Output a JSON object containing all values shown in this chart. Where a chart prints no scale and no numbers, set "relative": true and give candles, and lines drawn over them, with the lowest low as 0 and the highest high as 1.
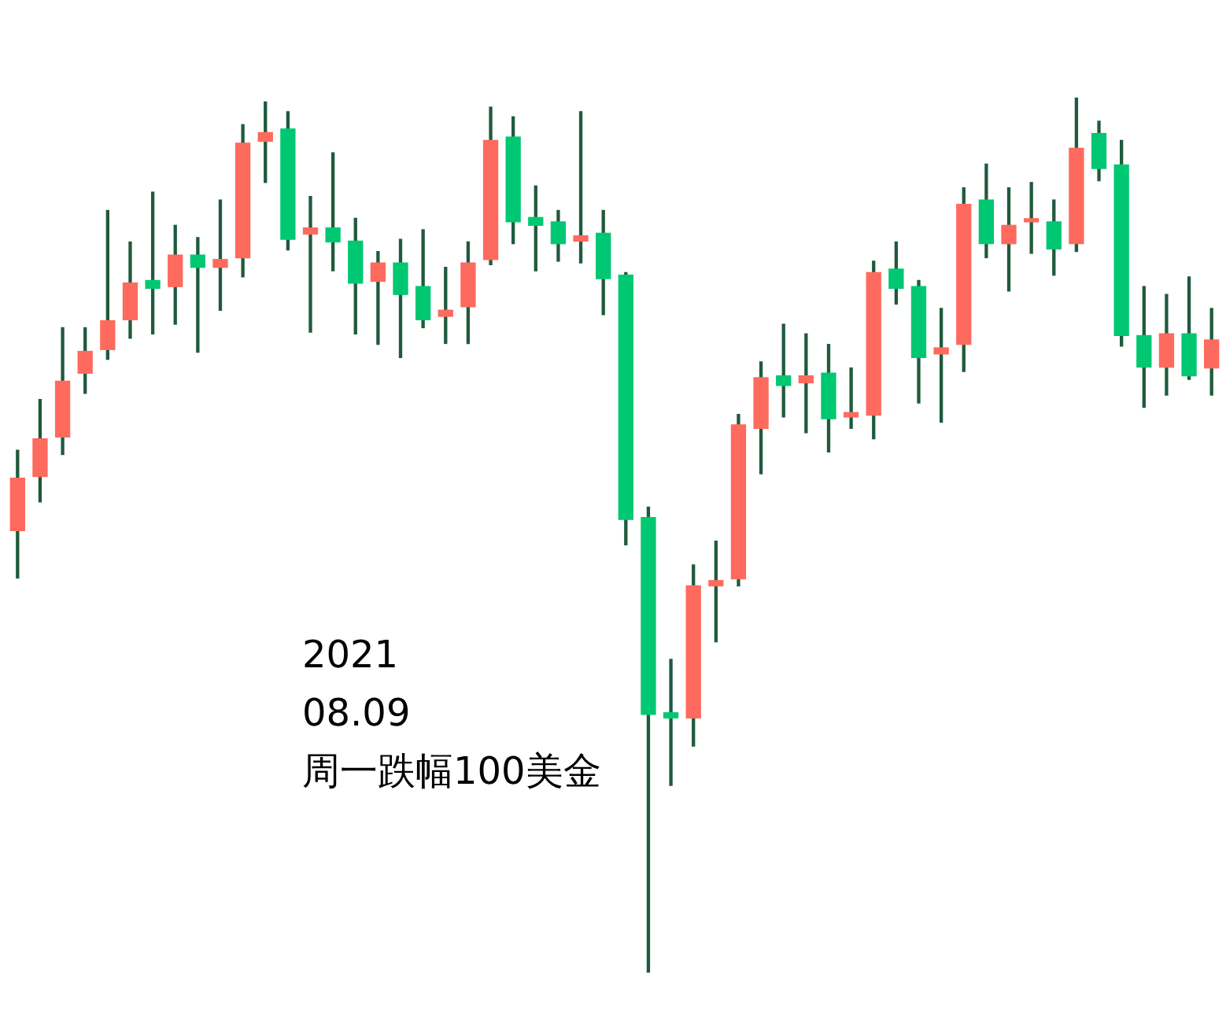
{
  "chart_data": {
    "type": "candlestick",
    "relative": true,
    "categories": [
      null,
      null,
      null,
      null,
      null,
      null,
      null,
      null,
      null,
      null,
      null,
      null,
      null,
      null,
      null,
      null,
      null,
      null,
      null,
      null,
      null,
      null,
      null,
      null,
      null,
      null,
      null,
      null,
      null,
      null,
      null,
      null,
      null,
      null,
      null,
      null,
      null,
      null,
      null,
      null,
      null,
      null,
      null,
      null,
      null,
      null,
      null,
      null,
      null,
      null,
      null,
      null,
      null,
      null
    ],
    "ohlc": [
      [
        0.505,
        0.597,
        0.451,
        0.565
      ],
      [
        0.567,
        0.655,
        0.538,
        0.61
      ],
      [
        0.612,
        0.737,
        0.592,
        0.676
      ],
      [
        0.685,
        0.737,
        0.662,
        0.71
      ],
      [
        0.712,
        0.871,
        0.701,
        0.745
      ],
      [
        0.746,
        0.835,
        0.725,
        0.788
      ],
      [
        0.791,
        0.892,
        0.73,
        0.782
      ],
      [
        0.784,
        0.854,
        0.741,
        0.82
      ],
      [
        0.82,
        0.84,
        0.709,
        0.806
      ],
      [
        0.806,
        0.883,
        0.757,
        0.815
      ],
      [
        0.817,
        0.969,
        0.795,
        0.948
      ],
      [
        0.95,
        0.995,
        0.903,
        0.96
      ],
      [
        0.964,
        0.984,
        0.826,
        0.838
      ],
      [
        0.844,
        0.887,
        0.732,
        0.851
      ],
      [
        0.851,
        0.937,
        0.802,
        0.835
      ],
      [
        0.836,
        0.862,
        0.73,
        0.788
      ],
      [
        0.79,
        0.824,
        0.718,
        0.811
      ],
      [
        0.811,
        0.838,
        0.703,
        0.775
      ],
      [
        0.784,
        0.849,
        0.737,
        0.746
      ],
      [
        0.75,
        0.806,
        0.719,
        0.757
      ],
      [
        0.761,
        0.835,
        0.719,
        0.811
      ],
      [
        0.815,
        0.989,
        0.809,
        0.951
      ],
      [
        0.955,
        0.978,
        0.833,
        0.858
      ],
      [
        0.863,
        0.899,
        0.802,
        0.854
      ],
      [
        0.858,
        0.871,
        0.813,
        0.833
      ],
      [
        0.836,
        0.984,
        0.811,
        0.842
      ],
      [
        0.845,
        0.871,
        0.752,
        0.793
      ],
      [
        0.797,
        0.8,
        0.489,
        0.518
      ],
      [
        0.52,
        0.532,
        0,
        0.295
      ],
      [
        0.297,
        0.358,
        0.214,
        0.291
      ],
      [
        0.291,
        0.466,
        0.259,
        0.442
      ],
      [
        0.442,
        0.493,
        0.378,
        0.448
      ],
      [
        0.45,
        0.638,
        0.442,
        0.626
      ],
      [
        0.622,
        0.698,
        0.57,
        0.68
      ],
      [
        0.682,
        0.741,
        0.635,
        0.671
      ],
      [
        0.674,
        0.73,
        0.617,
        0.682
      ],
      [
        0.685,
        0.718,
        0.595,
        0.633
      ],
      [
        0.635,
        0.691,
        0.622,
        0.64
      ],
      [
        0.637,
        0.813,
        0.61,
        0.8
      ],
      [
        0.804,
        0.835,
        0.764,
        0.782
      ],
      [
        0.784,
        0.791,
        0.651,
        0.703
      ],
      [
        0.707,
        0.759,
        0.629,
        0.714
      ],
      [
        0.718,
        0.897,
        0.687,
        0.878
      ],
      [
        0.883,
        0.924,
        0.817,
        0.833
      ],
      [
        0.833,
        0.897,
        0.779,
        0.854
      ],
      [
        0.858,
        0.903,
        0.822,
        0.858
      ],
      [
        0.858,
        0.883,
        0.797,
        0.827
      ],
      [
        0.833,
        1,
        0.824,
        0.942
      ],
      [
        0.959,
        0.973,
        0.905,
        0.919
      ],
      [
        0.923,
        0.951,
        0.716,
        0.728
      ],
      [
        0.728,
        0.784,
        0.646,
        0.692
      ],
      [
        0.692,
        0.775,
        0.66,
        0.73
      ],
      [
        0.73,
        0.795,
        0.678,
        0.682
      ],
      [
        0.691,
        0.759,
        0.66,
        0.723
      ]
    ],
    "colors": [
      "#fe6a5e",
      "#fe6a5e",
      "#fe6a5e",
      "#fe6a5e",
      "#fe6a5e",
      "#fe6a5e",
      "#00c872",
      "#fe6a5e",
      "#00c872",
      "#fe6a5e",
      "#fe6a5e",
      "#fe6a5e",
      "#00c872",
      "#fe6a5e",
      "#00c872",
      "#00c872",
      "#fe6a5e",
      "#00c872",
      "#00c872",
      "#fe6a5e",
      "#fe6a5e",
      "#fe6a5e",
      "#00c872",
      "#00c872",
      "#00c872",
      "#fe6a5e",
      "#00c872",
      "#00c872",
      "#00c872",
      "#00c872",
      "#fe6a5e",
      "#fe6a5e",
      "#fe6a5e",
      "#fe6a5e",
      "#00c872",
      "#fe6a5e",
      "#00c872",
      "#fe6a5e",
      "#fe6a5e",
      "#00c872",
      "#00c872",
      "#fe6a5e",
      "#fe6a5e",
      "#00c872",
      "#fe6a5e",
      "#fe6a5e",
      "#00c872",
      "#fe6a5e",
      "#00c872",
      "#00c872",
      "#00c872",
      "#fe6a5e",
      "#00c872",
      "#fe6a5e"
    ],
    "annotations": [
      "2021",
      "08.09",
      "周一跌幅100美金"
    ]
  }
}
